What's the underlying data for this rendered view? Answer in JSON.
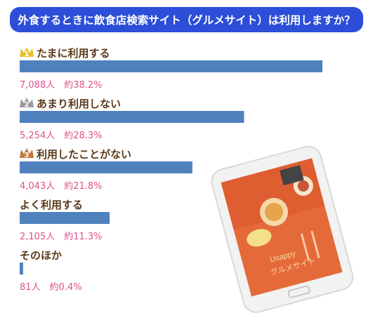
{
  "title": "外食するときに飲食店検索サイト（グルメサイト）は利用しますか？",
  "chart_data": {
    "type": "bar",
    "orientation": "horizontal",
    "categories": [
      "たまに利用する",
      "あまり利用しない",
      "利用したことがない",
      "よく利用する",
      "そのほか"
    ],
    "values": [
      7088,
      5254,
      4043,
      2105,
      81
    ],
    "value_labels": [
      "7,088人　約38.2%",
      "5,254人　約28.3%",
      "4,043人　約21.8%",
      "2,105人　約11.3%",
      "81人　約0.4%"
    ],
    "percentages": [
      38.2,
      28.3,
      21.8,
      11.3,
      0.4
    ],
    "ranks": [
      "1",
      "2",
      "3",
      "",
      ""
    ],
    "xlim": [
      0,
      7088
    ],
    "bar_color": "#4f81bd",
    "crown_colors": [
      "#e8c12c",
      "#9a9a9a",
      "#c27a3c"
    ]
  },
  "phone": {
    "app_name": "Usappy",
    "screen_text": "グルメサイト"
  }
}
